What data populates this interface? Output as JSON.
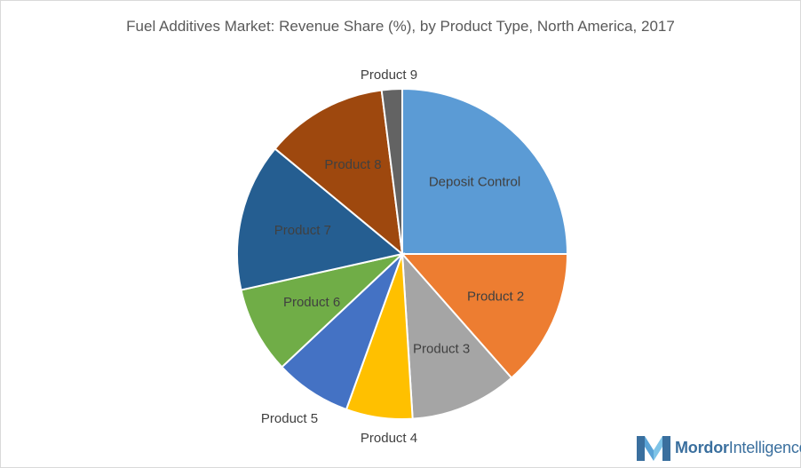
{
  "chart_data": {
    "type": "pie",
    "title": "Fuel Additives Market: Revenue Share (%), by Product Type, North America, 2017",
    "slices": [
      {
        "label": "Deposit Control",
        "value": 25.0,
        "color": "#5b9bd5"
      },
      {
        "label": "Product 2",
        "value": 13.5,
        "color": "#ed7d31"
      },
      {
        "label": "Product 3",
        "value": 10.5,
        "color": "#a5a5a5"
      },
      {
        "label": "Product 4",
        "value": 6.5,
        "color": "#ffc000"
      },
      {
        "label": "Product 5",
        "value": 7.5,
        "color": "#4472c4"
      },
      {
        "label": "Product 6",
        "value": 8.5,
        "color": "#70ad47"
      },
      {
        "label": "Product 7",
        "value": 14.5,
        "color": "#255e91"
      },
      {
        "label": "Product 8",
        "value": 12.0,
        "color": "#9e480e"
      },
      {
        "label": "Product 9",
        "value": 2.0,
        "color": "#636363"
      }
    ]
  },
  "logo": {
    "text_bold": "Mordor",
    "text_rest": "Intelligence"
  }
}
